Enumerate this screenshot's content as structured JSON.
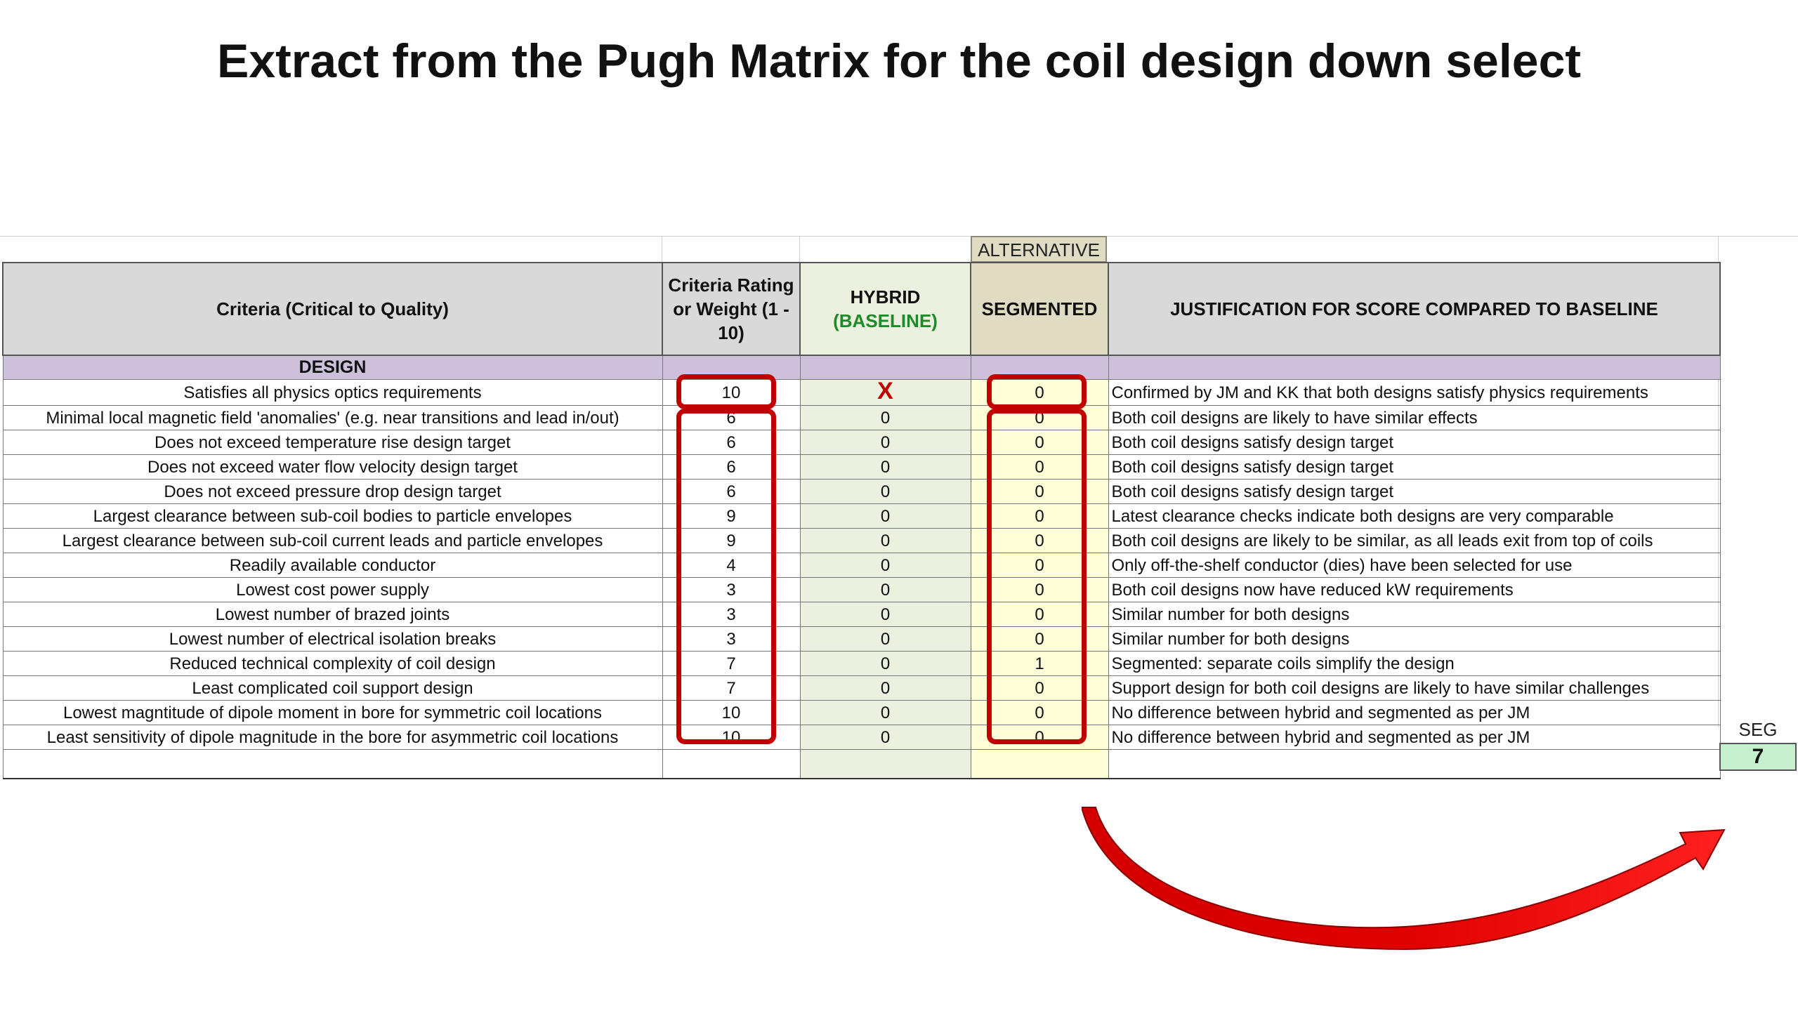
{
  "title": "Extract from the Pugh Matrix for the coil design down select",
  "alternative_label": "ALTERNATIVE",
  "headers": {
    "criteria": "Criteria (Critical to Quality)",
    "rating": "Criteria Rating or Weight (1 - 10)",
    "hybrid": "HYBRID",
    "hybrid_sub": "(BASELINE)",
    "segmented": "SEGMENTED",
    "justification": "JUSTIFICATION FOR SCORE COMPARED TO BASELINE"
  },
  "section_label": "DESIGN",
  "rows": [
    {
      "criterion": "Satisfies all physics optics requirements",
      "weight": "10",
      "hybrid": "X",
      "segmented": "0",
      "justification": "Confirmed by JM and KK that both designs satisfy physics requirements"
    },
    {
      "criterion": "Minimal local magnetic field 'anomalies' (e.g. near transitions and lead in/out)",
      "weight": "6",
      "hybrid": "0",
      "segmented": "0",
      "justification": "Both coil designs are likely to have similar effects"
    },
    {
      "criterion": "Does not exceed temperature rise design target",
      "weight": "6",
      "hybrid": "0",
      "segmented": "0",
      "justification": "Both coil designs satisfy design target"
    },
    {
      "criterion": "Does not exceed water flow velocity design target",
      "weight": "6",
      "hybrid": "0",
      "segmented": "0",
      "justification": "Both coil designs satisfy design target"
    },
    {
      "criterion": "Does not exceed pressure drop design target",
      "weight": "6",
      "hybrid": "0",
      "segmented": "0",
      "justification": "Both coil designs satisfy design target"
    },
    {
      "criterion": "Largest clearance between sub-coil bodies to particle envelopes",
      "weight": "9",
      "hybrid": "0",
      "segmented": "0",
      "justification": "Latest clearance checks indicate both designs are very comparable"
    },
    {
      "criterion": "Largest clearance between sub-coil current leads and particle envelopes",
      "weight": "9",
      "hybrid": "0",
      "segmented": "0",
      "justification": "Both coil designs are likely to be similar, as all leads exit from top of coils"
    },
    {
      "criterion": "Readily available conductor",
      "weight": "4",
      "hybrid": "0",
      "segmented": "0",
      "justification": "Only off-the-shelf conductor (dies) have been selected for use"
    },
    {
      "criterion": "Lowest cost power supply",
      "weight": "3",
      "hybrid": "0",
      "segmented": "0",
      "justification": "Both coil designs now have reduced kW requirements"
    },
    {
      "criterion": "Lowest number of brazed joints",
      "weight": "3",
      "hybrid": "0",
      "segmented": "0",
      "justification": "Similar number for both designs"
    },
    {
      "criterion": "Lowest number of electrical isolation breaks",
      "weight": "3",
      "hybrid": "0",
      "segmented": "0",
      "justification": "Similar number for both designs"
    },
    {
      "criterion": "Reduced technical complexity of coil design",
      "weight": "7",
      "hybrid": "0",
      "segmented": "1",
      "justification": "Segmented: separate coils simplify the design"
    },
    {
      "criterion": "Least complicated coil support design",
      "weight": "7",
      "hybrid": "0",
      "segmented": "0",
      "justification": "Support design for both coil designs are likely to have similar challenges"
    },
    {
      "criterion": "Lowest magntitude of dipole moment in bore for symmetric coil locations",
      "weight": "10",
      "hybrid": "0",
      "segmented": "0",
      "justification": "No difference between hybrid and segmented as per JM"
    },
    {
      "criterion": "Least sensitivity of dipole magnitude in the bore for asymmetric coil locations",
      "weight": "10",
      "hybrid": "0",
      "segmented": "0",
      "justification": "No difference between hybrid and segmented as per JM"
    }
  ],
  "score": {
    "label": "SEG",
    "value": "7"
  },
  "colors": {
    "highlight": "#c00000",
    "section": "#ccc0da",
    "hybrid_bg": "#ebf1de",
    "segmented_bg": "#fefed8",
    "score_bg": "#c6efce"
  }
}
